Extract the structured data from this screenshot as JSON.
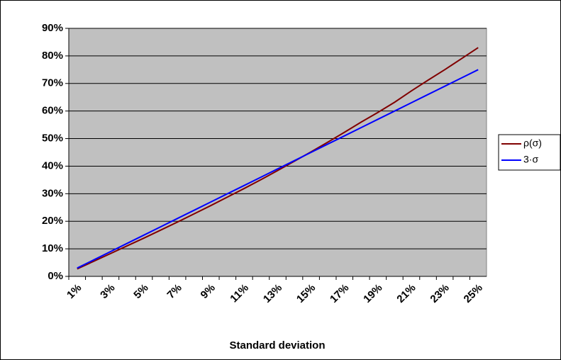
{
  "chart_data": {
    "type": "line",
    "x_label": "Standard deviation",
    "categories": [
      "1%",
      null,
      "3%",
      null,
      "5%",
      null,
      "7%",
      null,
      "9%",
      null,
      "11%",
      null,
      "13%",
      null,
      "15%",
      null,
      "17%",
      null,
      "19%",
      null,
      "21%",
      null,
      "23%",
      null,
      "25%"
    ],
    "series": [
      {
        "name": "ρ(σ)",
        "color": "#800000",
        "values": [
          2.7,
          5.5,
          8.3,
          11.1,
          13.9,
          16.8,
          19.7,
          22.7,
          25.7,
          28.8,
          31.9,
          35.1,
          38.4,
          41.8,
          45.2,
          48.7,
          52.3,
          56,
          59.5,
          63.2,
          67.3,
          71.2,
          75,
          79,
          83
        ]
      },
      {
        "name": "3·σ",
        "color": "#0000ff",
        "values": [
          3,
          6,
          9,
          12,
          15,
          18,
          21,
          24,
          27,
          30,
          33,
          36,
          39,
          42,
          45,
          48,
          51,
          54,
          57,
          60,
          63,
          66,
          69,
          72,
          75
        ]
      }
    ],
    "ylim": [
      0,
      90
    ],
    "yticks": [
      {
        "value": 0,
        "label": "0%"
      },
      {
        "value": 10,
        "label": "10%"
      },
      {
        "value": 20,
        "label": "20%"
      },
      {
        "value": 30,
        "label": "30%"
      },
      {
        "value": 40,
        "label": "40%"
      },
      {
        "value": 50,
        "label": "50%"
      },
      {
        "value": 60,
        "label": "60%"
      },
      {
        "value": 70,
        "label": "70%"
      },
      {
        "value": 80,
        "label": "80%"
      },
      {
        "value": 90,
        "label": "90%"
      }
    ],
    "grid": true,
    "legend": "right",
    "plot_background": "#c0c0c0"
  }
}
